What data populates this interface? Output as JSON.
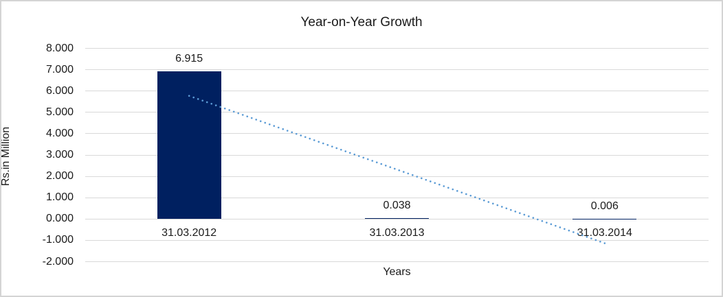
{
  "chart_data": {
    "type": "bar",
    "title": "Year-on-Year Growth",
    "xlabel": "Years",
    "ylabel": "Rs.in Million",
    "categories": [
      "31.03.2012",
      "31.03.2013",
      "31.03.2014"
    ],
    "values": [
      6.915,
      0.038,
      0.006
    ],
    "data_labels": [
      "6.915",
      "0.038",
      "0.006"
    ],
    "ylim": [
      -2,
      8
    ],
    "ytick_step": 1,
    "ytick_labels": [
      "8.000",
      "7.000",
      "6.000",
      "5.000",
      "4.000",
      "3.000",
      "2.000",
      "1.000",
      "0.000",
      "-1.000",
      "-2.000"
    ],
    "grid": true,
    "legend": "none",
    "bar_color": "#002060",
    "gridline_color": "#d9d9d9",
    "trendline": {
      "type": "linear",
      "style": "dotted",
      "color": "#5b9bd5",
      "start_value": 5.774,
      "end_value": -1.135
    }
  }
}
